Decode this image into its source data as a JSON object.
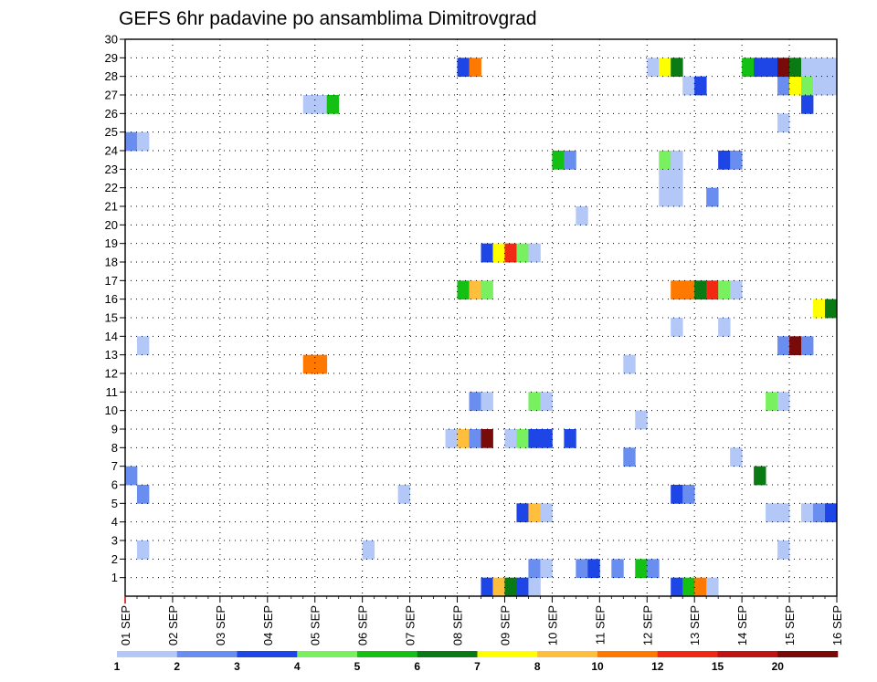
{
  "chart_data": {
    "type": "heatmap",
    "title": "GEFS 6hr padavine po ansamblima Dimitrovgrad",
    "xlabel": "",
    "ylabel": "",
    "x_ticks": [
      "01 SEP",
      "02 SEP",
      "03 SEP",
      "04 SEP",
      "05 SEP",
      "06 SEP",
      "07 SEP",
      "08 SEP",
      "09 SEP",
      "10 SEP",
      "11 SEP",
      "12 SEP",
      "13 SEP",
      "14 SEP",
      "15 SEP",
      "16 SEP"
    ],
    "y_ticks": [
      "1",
      "2",
      "3",
      "4",
      "5",
      "6",
      "7",
      "8",
      "9",
      "10",
      "11",
      "12",
      "13",
      "14",
      "15",
      "16",
      "17",
      "18",
      "19",
      "20",
      "21",
      "22",
      "23",
      "24",
      "25",
      "26",
      "27",
      "28",
      "29",
      "30"
    ],
    "x_unit": "6-hour step (0 = 01 SEP 00Z, 4 steps per day)",
    "x_range": [
      0,
      60
    ],
    "y_range": [
      0,
      30
    ],
    "grid": true,
    "legend": {
      "position": "bottom",
      "thresholds": [
        "1",
        "2",
        "3",
        "4",
        "5",
        "6",
        "7",
        "8",
        "10",
        "12",
        "15",
        "20"
      ],
      "colors": [
        "#b4c8f8",
        "#6a8ef0",
        "#1e46e6",
        "#78f060",
        "#14c014",
        "#0a7a14",
        "#ffff00",
        "#ffbe3c",
        "#ff7800",
        "#f02814",
        "#be1414",
        "#780a0a"
      ]
    },
    "cells": [
      {
        "member": 1,
        "step": 31,
        "cat": 3
      },
      {
        "member": 1,
        "step": 32,
        "cat": 8
      },
      {
        "member": 1,
        "step": 33,
        "cat": 6
      },
      {
        "member": 1,
        "step": 34,
        "cat": 3
      },
      {
        "member": 1,
        "step": 35,
        "cat": 1
      },
      {
        "member": 1,
        "step": 47,
        "cat": 3
      },
      {
        "member": 1,
        "step": 48,
        "cat": 5
      },
      {
        "member": 1,
        "step": 49,
        "cat": 9
      },
      {
        "member": 1,
        "step": 50,
        "cat": 1
      },
      {
        "member": 2,
        "step": 35,
        "cat": 2
      },
      {
        "member": 2,
        "step": 36,
        "cat": 1
      },
      {
        "member": 2,
        "step": 39,
        "cat": 2
      },
      {
        "member": 2,
        "step": 40,
        "cat": 3
      },
      {
        "member": 2,
        "step": 42,
        "cat": 2
      },
      {
        "member": 2,
        "step": 44,
        "cat": 5
      },
      {
        "member": 2,
        "step": 45,
        "cat": 2
      },
      {
        "member": 3,
        "step": 2,
        "cat": 1
      },
      {
        "member": 3,
        "step": 21,
        "cat": 1
      },
      {
        "member": 3,
        "step": 56,
        "cat": 1
      },
      {
        "member": 5,
        "step": 34,
        "cat": 3
      },
      {
        "member": 5,
        "step": 35,
        "cat": 8
      },
      {
        "member": 5,
        "step": 36,
        "cat": 1
      },
      {
        "member": 5,
        "step": 55,
        "cat": 1
      },
      {
        "member": 5,
        "step": 56,
        "cat": 1
      },
      {
        "member": 5,
        "step": 58,
        "cat": 1
      },
      {
        "member": 5,
        "step": 59,
        "cat": 2
      },
      {
        "member": 5,
        "step": 60,
        "cat": 3
      },
      {
        "member": 6,
        "step": 2,
        "cat": 2
      },
      {
        "member": 6,
        "step": 24,
        "cat": 1
      },
      {
        "member": 6,
        "step": 47,
        "cat": 3
      },
      {
        "member": 6,
        "step": 48,
        "cat": 2
      },
      {
        "member": 7,
        "step": 1,
        "cat": 2
      },
      {
        "member": 7,
        "step": 54,
        "cat": 6
      },
      {
        "member": 8,
        "step": 43,
        "cat": 2
      },
      {
        "member": 8,
        "step": 52,
        "cat": 1
      },
      {
        "member": 9,
        "step": 28,
        "cat": 1
      },
      {
        "member": 9,
        "step": 29,
        "cat": 8
      },
      {
        "member": 9,
        "step": 30,
        "cat": 2
      },
      {
        "member": 9,
        "step": 31,
        "cat": 12
      },
      {
        "member": 9,
        "step": 33,
        "cat": 1
      },
      {
        "member": 9,
        "step": 34,
        "cat": 4
      },
      {
        "member": 9,
        "step": 35,
        "cat": 3
      },
      {
        "member": 9,
        "step": 36,
        "cat": 3
      },
      {
        "member": 9,
        "step": 38,
        "cat": 3
      },
      {
        "member": 10,
        "step": 44,
        "cat": 1
      },
      {
        "member": 11,
        "step": 30,
        "cat": 2
      },
      {
        "member": 11,
        "step": 31,
        "cat": 1
      },
      {
        "member": 11,
        "step": 35,
        "cat": 4
      },
      {
        "member": 11,
        "step": 36,
        "cat": 1
      },
      {
        "member": 11,
        "step": 55,
        "cat": 4
      },
      {
        "member": 11,
        "step": 56,
        "cat": 1
      },
      {
        "member": 13,
        "step": 16,
        "cat": 9
      },
      {
        "member": 13,
        "step": 17,
        "cat": 9
      },
      {
        "member": 13,
        "step": 43,
        "cat": 1
      },
      {
        "member": 14,
        "step": 2,
        "cat": 1
      },
      {
        "member": 14,
        "step": 56,
        "cat": 2
      },
      {
        "member": 14,
        "step": 57,
        "cat": 12
      },
      {
        "member": 14,
        "step": 58,
        "cat": 2
      },
      {
        "member": 15,
        "step": 47,
        "cat": 1
      },
      {
        "member": 15,
        "step": 51,
        "cat": 1
      },
      {
        "member": 16,
        "step": 59,
        "cat": 7
      },
      {
        "member": 16,
        "step": 60,
        "cat": 6
      },
      {
        "member": 17,
        "step": 29,
        "cat": 5
      },
      {
        "member": 17,
        "step": 30,
        "cat": 8
      },
      {
        "member": 17,
        "step": 31,
        "cat": 4
      },
      {
        "member": 17,
        "step": 47,
        "cat": 9
      },
      {
        "member": 17,
        "step": 48,
        "cat": 9
      },
      {
        "member": 17,
        "step": 49,
        "cat": 6
      },
      {
        "member": 17,
        "step": 50,
        "cat": 10
      },
      {
        "member": 17,
        "step": 51,
        "cat": 4
      },
      {
        "member": 17,
        "step": 52,
        "cat": 1
      },
      {
        "member": 19,
        "step": 31,
        "cat": 3
      },
      {
        "member": 19,
        "step": 32,
        "cat": 7
      },
      {
        "member": 19,
        "step": 33,
        "cat": 10
      },
      {
        "member": 19,
        "step": 34,
        "cat": 4
      },
      {
        "member": 19,
        "step": 35,
        "cat": 1
      },
      {
        "member": 21,
        "step": 39,
        "cat": 1
      },
      {
        "member": 22,
        "step": 46,
        "cat": 1
      },
      {
        "member": 22,
        "step": 47,
        "cat": 1
      },
      {
        "member": 22,
        "step": 50,
        "cat": 2
      },
      {
        "member": 23,
        "step": 46,
        "cat": 1
      },
      {
        "member": 23,
        "step": 47,
        "cat": 1
      },
      {
        "member": 24,
        "step": 37,
        "cat": 5
      },
      {
        "member": 24,
        "step": 38,
        "cat": 2
      },
      {
        "member": 24,
        "step": 46,
        "cat": 4
      },
      {
        "member": 24,
        "step": 47,
        "cat": 1
      },
      {
        "member": 24,
        "step": 51,
        "cat": 3
      },
      {
        "member": 24,
        "step": 52,
        "cat": 2
      },
      {
        "member": 25,
        "step": 1,
        "cat": 2
      },
      {
        "member": 25,
        "step": 2,
        "cat": 1
      },
      {
        "member": 26,
        "step": 56,
        "cat": 1
      },
      {
        "member": 27,
        "step": 16,
        "cat": 1
      },
      {
        "member": 27,
        "step": 17,
        "cat": 1
      },
      {
        "member": 27,
        "step": 18,
        "cat": 5
      },
      {
        "member": 27,
        "step": 58,
        "cat": 3
      },
      {
        "member": 28,
        "step": 48,
        "cat": 1
      },
      {
        "member": 28,
        "step": 49,
        "cat": 3
      },
      {
        "member": 28,
        "step": 56,
        "cat": 2
      },
      {
        "member": 28,
        "step": 57,
        "cat": 7
      },
      {
        "member": 28,
        "step": 58,
        "cat": 4
      },
      {
        "member": 28,
        "step": 59,
        "cat": 1
      },
      {
        "member": 28,
        "step": 60,
        "cat": 1
      },
      {
        "member": 29,
        "step": 29,
        "cat": 3
      },
      {
        "member": 29,
        "step": 30,
        "cat": 9
      },
      {
        "member": 29,
        "step": 45,
        "cat": 1
      },
      {
        "member": 29,
        "step": 46,
        "cat": 7
      },
      {
        "member": 29,
        "step": 47,
        "cat": 6
      },
      {
        "member": 29,
        "step": 53,
        "cat": 5
      },
      {
        "member": 29,
        "step": 54,
        "cat": 3
      },
      {
        "member": 29,
        "step": 55,
        "cat": 3
      },
      {
        "member": 29,
        "step": 56,
        "cat": 12
      },
      {
        "member": 29,
        "step": 57,
        "cat": 6
      },
      {
        "member": 29,
        "step": 58,
        "cat": 1
      },
      {
        "member": 29,
        "step": 59,
        "cat": 1
      },
      {
        "member": 29,
        "step": 60,
        "cat": 1
      }
    ]
  }
}
